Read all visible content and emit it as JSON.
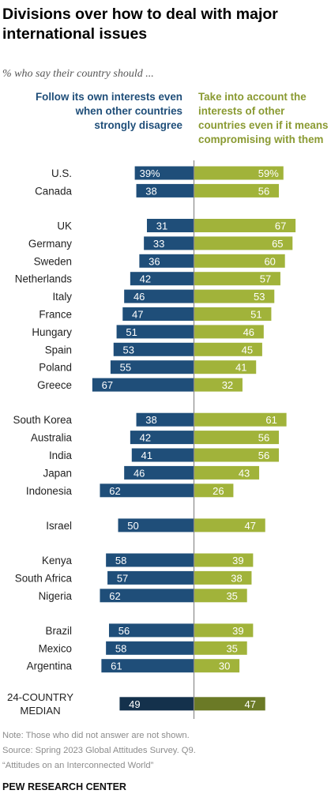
{
  "title": "Divisions over how to deal with major international issues",
  "subtitle": "% who say their country should ...",
  "headers": {
    "left": "Follow its own interests even when other countries strongly disagree",
    "right": "Take into account the interests of other countries even if it means compromising with them"
  },
  "colors": {
    "left": "#1f4e79",
    "right": "#a1b33a",
    "median_left": "#14314c",
    "median_right": "#6b7a26",
    "axis": "#8a8a8a"
  },
  "chart_data": {
    "type": "bar",
    "orientation": "diverging-horizontal",
    "series": [
      {
        "name": "Follow its own interests even when other countries strongly disagree",
        "values": [
          39,
          38,
          31,
          33,
          36,
          42,
          46,
          47,
          51,
          53,
          55,
          67,
          38,
          42,
          41,
          46,
          62,
          50,
          58,
          57,
          62,
          56,
          58,
          61,
          49
        ]
      },
      {
        "name": "Take into account the interests of other countries even if it means compromising with them",
        "values": [
          59,
          56,
          67,
          65,
          60,
          57,
          53,
          51,
          46,
          45,
          41,
          32,
          61,
          56,
          56,
          43,
          26,
          47,
          39,
          38,
          35,
          39,
          35,
          30,
          47
        ]
      }
    ],
    "categories": [
      "U.S.",
      "Canada",
      "UK",
      "Germany",
      "Sweden",
      "Netherlands",
      "Italy",
      "France",
      "Hungary",
      "Spain",
      "Poland",
      "Greece",
      "South Korea",
      "Australia",
      "India",
      "Japan",
      "Indonesia",
      "Israel",
      "Kenya",
      "South Africa",
      "Nigeria",
      "Brazil",
      "Mexico",
      "Argentina",
      "24-COUNTRY MEDIAN"
    ],
    "value_labels_left": [
      "39%",
      "38",
      "31",
      "33",
      "36",
      "42",
      "46",
      "47",
      "51",
      "53",
      "55",
      "67",
      "38",
      "42",
      "41",
      "46",
      "62",
      "50",
      "58",
      "57",
      "62",
      "56",
      "58",
      "61",
      "49"
    ],
    "value_labels_right": [
      "59%",
      "56",
      "67",
      "65",
      "60",
      "57",
      "53",
      "51",
      "46",
      "45",
      "41",
      "32",
      "61",
      "56",
      "56",
      "43",
      "26",
      "47",
      "39",
      "38",
      "35",
      "39",
      "35",
      "30",
      "47"
    ],
    "groups": [
      2,
      10,
      5,
      1,
      3,
      3,
      1
    ],
    "median_label_lines": [
      "24-COUNTRY",
      "MEDIAN"
    ]
  },
  "notes": [
    "Note: Those who did not answer are not shown.",
    "Source: Spring 2023 Global Attitudes Survey. Q9.",
    "“Attitudes on an Interconnected World”"
  ],
  "brand": "PEW RESEARCH CENTER"
}
